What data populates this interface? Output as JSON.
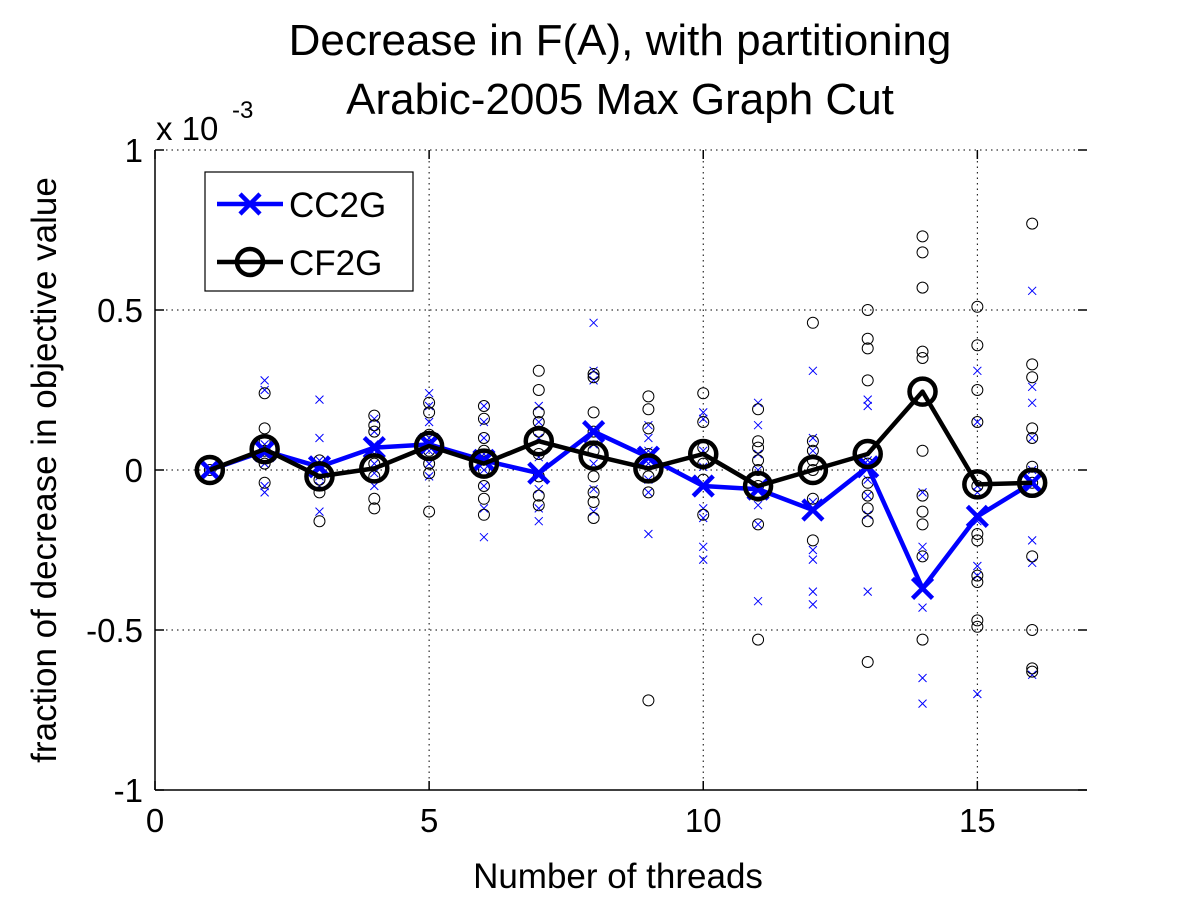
{
  "chart_data": {
    "type": "scatter",
    "title": [
      "Decrease in F(A), with partitioning",
      "Arabic-2005 Max Graph Cut"
    ],
    "xlabel": "Number of threads",
    "ylabel": "fraction of decrease in objective value",
    "y_exponent_base": "x 10",
    "y_exponent_power": "-3",
    "xlim": [
      0,
      17
    ],
    "ylim": [
      -1,
      1
    ],
    "x_ticks": [
      0,
      5,
      10,
      15
    ],
    "x_tick_labels": [
      "0",
      "5",
      "10",
      "15"
    ],
    "y_ticks": [
      -1,
      -0.5,
      0,
      0.5,
      1
    ],
    "y_tick_labels": [
      "-1",
      "-0.5",
      "0",
      "0.5",
      "1"
    ],
    "grid": true,
    "legend_position": "top-left",
    "series": [
      {
        "name": "CC2G",
        "color": "#0000ff",
        "marker": "x",
        "x": [
          1,
          2,
          3,
          4,
          5,
          6,
          7,
          8,
          9,
          10,
          11,
          12,
          13,
          14,
          15,
          16
        ],
        "y": [
          0,
          0.06,
          0.01,
          0.07,
          0.08,
          0.03,
          -0.01,
          0.12,
          0.04,
          -0.05,
          -0.06,
          -0.125,
          0.01,
          -0.37,
          -0.145,
          -0.04
        ],
        "samples": [
          [
            1,
            0
          ],
          [
            2,
            0.28
          ],
          [
            2,
            0.25
          ],
          [
            2,
            0.08
          ],
          [
            2,
            0.05
          ],
          [
            2,
            0.02
          ],
          [
            2,
            -0.05
          ],
          [
            2,
            -0.07
          ],
          [
            3,
            0.22
          ],
          [
            3,
            0.1
          ],
          [
            3,
            0.03
          ],
          [
            3,
            0.0
          ],
          [
            3,
            -0.02
          ],
          [
            3,
            -0.05
          ],
          [
            3,
            -0.13
          ],
          [
            4,
            0.16
          ],
          [
            4,
            0.12
          ],
          [
            4,
            0.08
          ],
          [
            4,
            0.05
          ],
          [
            4,
            0.02
          ],
          [
            4,
            -0.01
          ],
          [
            4,
            -0.05
          ],
          [
            5,
            0.24
          ],
          [
            5,
            0.2
          ],
          [
            5,
            0.15
          ],
          [
            5,
            0.1
          ],
          [
            5,
            0.06
          ],
          [
            5,
            0.02
          ],
          [
            5,
            -0.02
          ],
          [
            6,
            0.2
          ],
          [
            6,
            0.15
          ],
          [
            6,
            0.1
          ],
          [
            6,
            0.05
          ],
          [
            6,
            0.0
          ],
          [
            6,
            -0.05
          ],
          [
            6,
            -0.12
          ],
          [
            6,
            -0.21
          ],
          [
            7,
            0.2
          ],
          [
            7,
            0.15
          ],
          [
            7,
            0.1
          ],
          [
            7,
            0.04
          ],
          [
            7,
            -0.02
          ],
          [
            7,
            -0.06
          ],
          [
            7,
            -0.12
          ],
          [
            7,
            -0.16
          ],
          [
            8,
            0.46
          ],
          [
            8,
            0.31
          ],
          [
            8,
            0.28
          ],
          [
            8,
            0.12
          ],
          [
            8,
            0.08
          ],
          [
            8,
            0.02
          ],
          [
            8,
            -0.06
          ],
          [
            8,
            -0.13
          ],
          [
            9,
            0.14
          ],
          [
            9,
            0.1
          ],
          [
            9,
            0.06
          ],
          [
            9,
            0.02
          ],
          [
            9,
            -0.03
          ],
          [
            9,
            -0.07
          ],
          [
            9,
            -0.2
          ],
          [
            10,
            0.18
          ],
          [
            10,
            0.16
          ],
          [
            10,
            0.06
          ],
          [
            10,
            0.01
          ],
          [
            10,
            -0.12
          ],
          [
            10,
            -0.15
          ],
          [
            10,
            -0.24
          ],
          [
            10,
            -0.28
          ],
          [
            11,
            0.21
          ],
          [
            11,
            0.14
          ],
          [
            11,
            0.05
          ],
          [
            11,
            0.0
          ],
          [
            11,
            -0.06
          ],
          [
            11,
            -0.11
          ],
          [
            11,
            -0.17
          ],
          [
            11,
            -0.41
          ],
          [
            12,
            0.31
          ],
          [
            12,
            0.1
          ],
          [
            12,
            0.06
          ],
          [
            12,
            -0.1
          ],
          [
            12,
            -0.25
          ],
          [
            12,
            -0.28
          ],
          [
            12,
            -0.38
          ],
          [
            12,
            -0.42
          ],
          [
            13,
            0.22
          ],
          [
            13,
            0.2
          ],
          [
            13,
            0.03
          ],
          [
            13,
            -0.03
          ],
          [
            13,
            -0.08
          ],
          [
            13,
            -0.14
          ],
          [
            13,
            -0.38
          ],
          [
            14,
            -0.07
          ],
          [
            14,
            -0.24
          ],
          [
            14,
            -0.27
          ],
          [
            14,
            -0.43
          ],
          [
            14,
            -0.65
          ],
          [
            14,
            -0.73
          ],
          [
            15,
            0.31
          ],
          [
            15,
            0.15
          ],
          [
            15,
            -0.05
          ],
          [
            15,
            -0.07
          ],
          [
            15,
            -0.16
          ],
          [
            15,
            -0.3
          ],
          [
            15,
            -0.33
          ],
          [
            15,
            -0.7
          ],
          [
            16,
            0.56
          ],
          [
            16,
            0.26
          ],
          [
            16,
            0.21
          ],
          [
            16,
            0.1
          ],
          [
            16,
            0.0
          ],
          [
            16,
            -0.04
          ],
          [
            16,
            -0.22
          ],
          [
            16,
            -0.29
          ],
          [
            16,
            -0.64
          ]
        ]
      },
      {
        "name": "CF2G",
        "color": "#000000",
        "marker": "o",
        "x": [
          1,
          2,
          3,
          4,
          5,
          6,
          7,
          8,
          9,
          10,
          11,
          12,
          13,
          14,
          15,
          16
        ],
        "y": [
          0,
          0.065,
          -0.02,
          0.005,
          0.075,
          0.02,
          0.09,
          0.045,
          0.005,
          0.05,
          -0.05,
          0.0,
          0.05,
          0.245,
          -0.045,
          -0.04
        ],
        "samples": [
          [
            1,
            0
          ],
          [
            2,
            0.24
          ],
          [
            2,
            0.13
          ],
          [
            2,
            0.09
          ],
          [
            2,
            0.06
          ],
          [
            2,
            0.02
          ],
          [
            2,
            -0.04
          ],
          [
            3,
            0.03
          ],
          [
            3,
            -0.01
          ],
          [
            3,
            -0.03
          ],
          [
            3,
            -0.07
          ],
          [
            3,
            -0.16
          ],
          [
            4,
            0.17
          ],
          [
            4,
            0.14
          ],
          [
            4,
            0.12
          ],
          [
            4,
            0.02
          ],
          [
            4,
            -0.02
          ],
          [
            4,
            -0.09
          ],
          [
            4,
            -0.12
          ],
          [
            5,
            0.21
          ],
          [
            5,
            0.18
          ],
          [
            5,
            0.11
          ],
          [
            5,
            0.06
          ],
          [
            5,
            0.02
          ],
          [
            5,
            -0.01
          ],
          [
            5,
            -0.13
          ],
          [
            6,
            0.2
          ],
          [
            6,
            0.16
          ],
          [
            6,
            0.1
          ],
          [
            6,
            0.06
          ],
          [
            6,
            0.0
          ],
          [
            6,
            -0.05
          ],
          [
            6,
            -0.09
          ],
          [
            6,
            -0.14
          ],
          [
            7,
            0.31
          ],
          [
            7,
            0.25
          ],
          [
            7,
            0.18
          ],
          [
            7,
            0.15
          ],
          [
            7,
            0.12
          ],
          [
            7,
            0.05
          ],
          [
            7,
            -0.02
          ],
          [
            7,
            -0.08
          ],
          [
            7,
            -0.11
          ],
          [
            8,
            0.3
          ],
          [
            8,
            0.29
          ],
          [
            8,
            0.18
          ],
          [
            8,
            0.12
          ],
          [
            8,
            0.06
          ],
          [
            8,
            -0.02
          ],
          [
            8,
            -0.07
          ],
          [
            8,
            -0.1
          ],
          [
            8,
            -0.15
          ],
          [
            9,
            0.23
          ],
          [
            9,
            0.19
          ],
          [
            9,
            0.13
          ],
          [
            9,
            0.05
          ],
          [
            9,
            -0.02
          ],
          [
            9,
            -0.07
          ],
          [
            9,
            -0.72
          ],
          [
            10,
            0.24
          ],
          [
            10,
            0.15
          ],
          [
            10,
            0.07
          ],
          [
            10,
            0.02
          ],
          [
            10,
            -0.03
          ],
          [
            10,
            -0.14
          ],
          [
            11,
            0.19
          ],
          [
            11,
            0.09
          ],
          [
            11,
            0.07
          ],
          [
            11,
            0.03
          ],
          [
            11,
            0.0
          ],
          [
            11,
            -0.05
          ],
          [
            11,
            -0.08
          ],
          [
            11,
            -0.17
          ],
          [
            11,
            -0.53
          ],
          [
            12,
            0.46
          ],
          [
            12,
            0.09
          ],
          [
            12,
            0.06
          ],
          [
            12,
            0.03
          ],
          [
            12,
            0.0
          ],
          [
            12,
            -0.09
          ],
          [
            12,
            -0.22
          ],
          [
            13,
            0.5
          ],
          [
            13,
            0.41
          ],
          [
            13,
            0.38
          ],
          [
            13,
            0.28
          ],
          [
            13,
            0.02
          ],
          [
            13,
            -0.04
          ],
          [
            13,
            -0.08
          ],
          [
            13,
            -0.12
          ],
          [
            13,
            -0.16
          ],
          [
            13,
            -0.6
          ],
          [
            14,
            0.73
          ],
          [
            14,
            0.68
          ],
          [
            14,
            0.57
          ],
          [
            14,
            0.37
          ],
          [
            14,
            0.35
          ],
          [
            14,
            0.22
          ],
          [
            14,
            0.06
          ],
          [
            14,
            -0.08
          ],
          [
            14,
            -0.13
          ],
          [
            14,
            -0.17
          ],
          [
            14,
            -0.27
          ],
          [
            14,
            -0.53
          ],
          [
            15,
            0.51
          ],
          [
            15,
            0.39
          ],
          [
            15,
            0.25
          ],
          [
            15,
            0.15
          ],
          [
            15,
            -0.05
          ],
          [
            15,
            -0.2
          ],
          [
            15,
            -0.22
          ],
          [
            15,
            -0.33
          ],
          [
            15,
            -0.35
          ],
          [
            15,
            -0.47
          ],
          [
            15,
            -0.49
          ],
          [
            16,
            0.77
          ],
          [
            16,
            0.33
          ],
          [
            16,
            0.29
          ],
          [
            16,
            0.13
          ],
          [
            16,
            0.1
          ],
          [
            16,
            0.01
          ],
          [
            16,
            -0.04
          ],
          [
            16,
            -0.27
          ],
          [
            16,
            -0.5
          ],
          [
            16,
            -0.62
          ],
          [
            16,
            -0.63
          ]
        ]
      }
    ]
  }
}
